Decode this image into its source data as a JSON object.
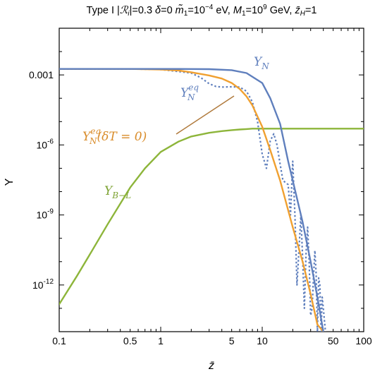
{
  "chart_data": {
    "type": "line",
    "title_parts": {
      "a": "Type I |",
      "b": "ℛ",
      "c": "i",
      "d": "|=0.3 ",
      "e": "δ",
      "f": "=0 ",
      "g": "m̃",
      "h": "1",
      "i": "=10",
      "j": "−4",
      "k": " eV, ",
      "l": "M",
      "m": "1",
      "n": "=10",
      "o": "9",
      "p": " GeV, ",
      "q": "z̄",
      "r": "H",
      "s": "=1"
    },
    "xlabel": "z̄",
    "ylabel": "Y",
    "x_scale": "log",
    "y_scale": "log",
    "xlim": [
      0.1,
      100
    ],
    "ylim": [
      1e-14,
      0.1
    ],
    "x_ticks": [
      {
        "v": 0.1,
        "label": "0.1"
      },
      {
        "v": 0.5,
        "label": "0.5"
      },
      {
        "v": 1,
        "label": "1"
      },
      {
        "v": 5,
        "label": "5"
      },
      {
        "v": 10,
        "label": "10"
      },
      {
        "v": 50,
        "label": "50"
      },
      {
        "v": 100,
        "label": "100"
      }
    ],
    "y_ticks": [
      {
        "v": 0.001,
        "base": "0.001",
        "exp": ""
      },
      {
        "v": 1e-06,
        "base": "10",
        "exp": "-6"
      },
      {
        "v": 1e-09,
        "base": "10",
        "exp": "-9"
      },
      {
        "v": 1e-12,
        "base": "10",
        "exp": "-12"
      }
    ],
    "grid": false,
    "colors": {
      "Y_N": "#5f7fbd",
      "Y_N_eq": "#5f7fbd",
      "Y_N_eq_dT0": "#f0a030",
      "Y_BL": "#8db53a"
    },
    "series": [
      {
        "name": "Y_N",
        "label_main": "Y",
        "label_sub": "N",
        "label_sup": "",
        "label_tail": "",
        "style": "solid",
        "x": [
          0.1,
          0.5,
          1,
          2,
          3,
          5,
          7,
          10,
          12,
          15,
          18,
          20,
          25,
          30,
          35,
          40
        ],
        "y": [
          0.0018,
          0.0018,
          0.0018,
          0.00179,
          0.00176,
          0.0016,
          0.0012,
          0.00045,
          0.0001,
          8e-06,
          2e-07,
          3e-08,
          5e-10,
          1e-11,
          3e-13,
          1e-14
        ]
      },
      {
        "name": "Y_N_eq",
        "label_main": "Y",
        "label_sub": "N",
        "label_sup": "eq",
        "label_tail": "",
        "style": "dotted",
        "x": [
          0.1,
          0.5,
          1,
          2,
          2.5,
          3,
          3.5,
          4,
          5,
          6,
          7,
          8,
          9,
          10,
          11,
          12,
          13,
          14,
          15,
          16,
          18,
          19,
          20,
          21,
          22,
          23,
          24,
          25,
          26,
          27,
          28,
          29,
          30,
          31,
          32,
          33,
          34,
          35,
          36,
          37,
          38,
          39,
          40,
          42
        ],
        "y": [
          0.0018,
          0.0018,
          0.0017,
          0.0012,
          0.00075,
          0.00042,
          0.00032,
          0.0003,
          0.00031,
          0.0003,
          0.0002,
          7e-05,
          1e-05,
          4e-07,
          1e-07,
          1.5e-06,
          3e-06,
          1e-06,
          1.5e-07,
          3e-08,
          2e-08,
          1e-09,
          2e-07,
          1e-09,
          1e-12,
          3e-11,
          1e-09,
          1.5e-11,
          1e-13,
          2e-11,
          3e-10,
          1e-11,
          5e-14,
          1e-13,
          2e-12,
          3e-11,
          3e-12,
          1e-14,
          2e-12,
          1e-12,
          1e-14,
          3e-13,
          1e-13,
          1e-14
        ]
      },
      {
        "name": "Y_N_eq_dT0",
        "label_main": "Y",
        "label_sub": "N",
        "label_sup": "eq",
        "label_tail": "(δT = 0)",
        "style": "solid",
        "x": [
          0.1,
          0.5,
          1,
          1.5,
          2,
          3,
          4,
          5,
          6,
          7,
          8,
          10,
          12,
          15,
          20,
          25,
          30,
          35,
          40
        ],
        "y": [
          0.0018,
          0.0018,
          0.0017,
          0.00155,
          0.0013,
          0.00095,
          0.0007,
          0.00045,
          0.00025,
          0.00012,
          5e-05,
          6e-06,
          6e-07,
          3e-08,
          3e-10,
          1e-11,
          4e-13,
          2e-14,
          1e-14
        ]
      },
      {
        "name": "Y_BL",
        "label_main": "Y",
        "label_sub": "B−L",
        "label_sup": "",
        "label_tail": "",
        "style": "solid",
        "x": [
          0.1,
          0.15,
          0.2,
          0.3,
          0.5,
          0.7,
          1,
          1.5,
          2,
          3,
          4,
          5,
          6,
          7,
          8,
          10,
          15,
          20,
          50,
          100
        ],
        "y": [
          1.5e-13,
          2.5e-12,
          2e-11,
          4e-10,
          1.5e-08,
          1e-07,
          5e-07,
          1.4e-06,
          2.3e-06,
          3.3e-06,
          3.9e-06,
          4.3e-06,
          4.6e-06,
          4.8e-06,
          5e-06,
          5e-06,
          5e-06,
          5e-06,
          5e-06,
          5e-06
        ]
      }
    ]
  }
}
